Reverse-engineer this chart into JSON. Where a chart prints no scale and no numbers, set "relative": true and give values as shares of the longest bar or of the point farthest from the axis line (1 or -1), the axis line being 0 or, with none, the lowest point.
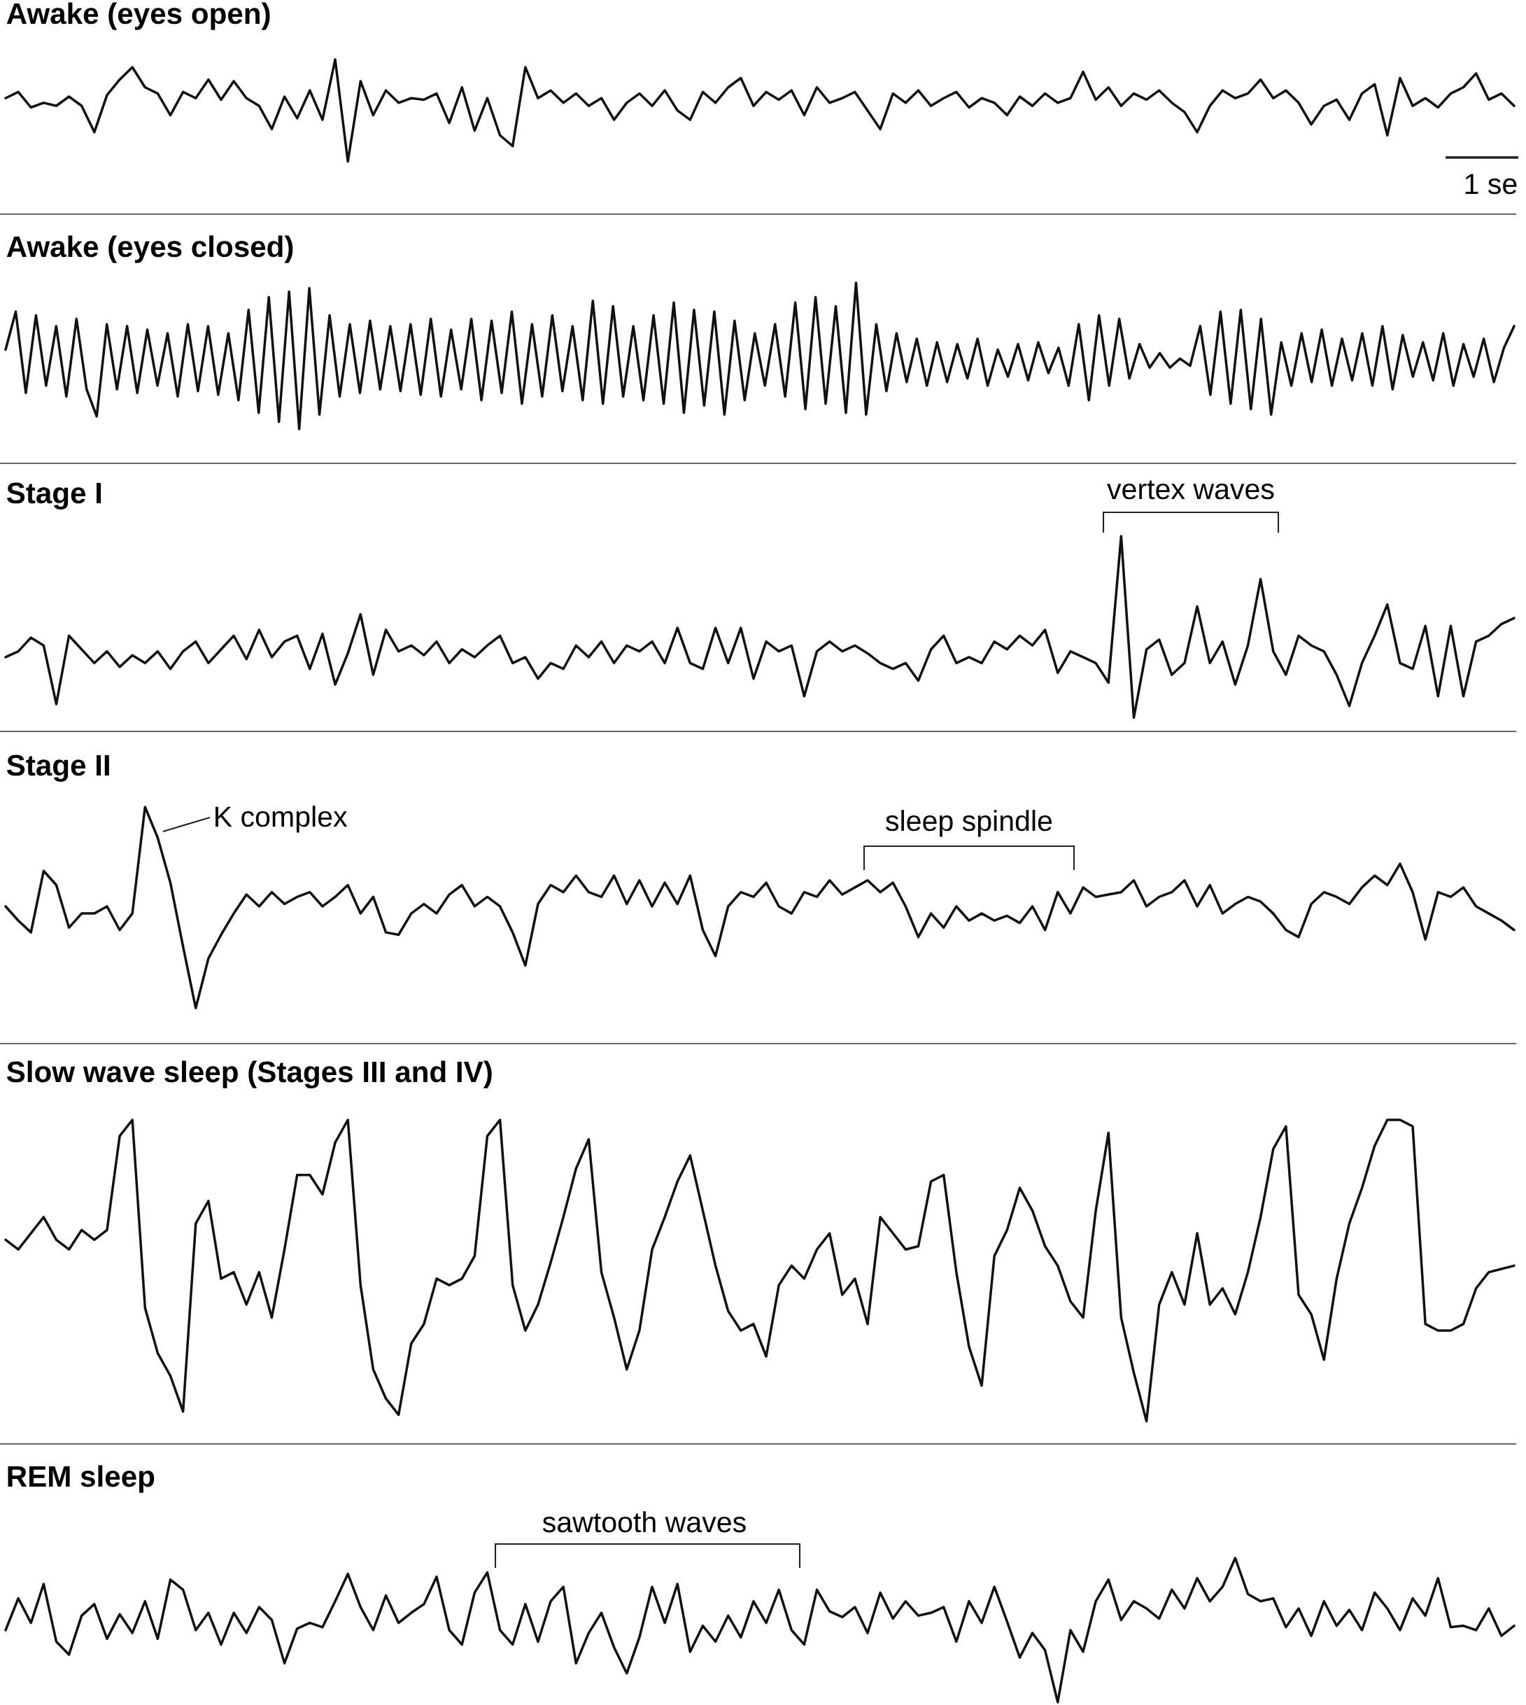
{
  "chart_data": [
    {
      "type": "line",
      "title": "Awake (eyes open)",
      "relative": true,
      "color": "#111111",
      "annotations": [
        "1 se"
      ],
      "categories": [
        null,
        null,
        null,
        null,
        null,
        null,
        null,
        null,
        null,
        null,
        null,
        null,
        null,
        null,
        null,
        null,
        null,
        null,
        null,
        null,
        null,
        null,
        null,
        null,
        null,
        null,
        null,
        null,
        null,
        null,
        null,
        null,
        null,
        null,
        null,
        null,
        null,
        null,
        null,
        null,
        null,
        null,
        null,
        null,
        null,
        null,
        null,
        null,
        null,
        null,
        null,
        null,
        null,
        null,
        null,
        null,
        null,
        null,
        null,
        null,
        null,
        null,
        null,
        null,
        null,
        null,
        null,
        null,
        null,
        null,
        null,
        null,
        null,
        null,
        null,
        null,
        null,
        null,
        null,
        null,
        null,
        null,
        null,
        null,
        null,
        null,
        null,
        null,
        null,
        null,
        null,
        null,
        null,
        null,
        null,
        null,
        null,
        null,
        null,
        null,
        null,
        null,
        null,
        null,
        null,
        null,
        null,
        null,
        null,
        null,
        null,
        null,
        null,
        null,
        null,
        null,
        null,
        null,
        null,
        null
      ],
      "values": [
        0.75,
        0.79,
        0.69,
        0.72,
        0.7,
        0.76,
        0.7,
        0.53,
        0.77,
        0.87,
        0.95,
        0.82,
        0.78,
        0.64,
        0.79,
        0.75,
        0.87,
        0.74,
        0.86,
        0.75,
        0.7,
        0.55,
        0.76,
        0.62,
        0.8,
        0.61,
        1.0,
        0.34,
        0.86,
        0.64,
        0.8,
        0.72,
        0.75,
        0.74,
        0.78,
        0.59,
        0.82,
        0.54,
        0.75,
        0.51,
        0.44,
        0.95,
        0.75,
        0.8,
        0.72,
        0.78,
        0.7,
        0.75,
        0.61,
        0.72,
        0.78,
        0.7,
        0.8,
        0.67,
        0.61,
        0.79,
        0.72,
        0.82,
        0.88,
        0.7,
        0.79,
        0.74,
        0.8,
        0.64,
        0.82,
        0.72,
        0.75,
        0.79,
        0.67,
        0.55,
        0.78,
        0.72,
        0.8,
        0.7,
        0.75,
        0.79,
        0.69,
        0.75,
        0.72,
        0.64,
        0.76,
        0.7,
        0.78,
        0.72,
        0.75,
        0.92,
        0.74,
        0.82,
        0.7,
        0.78,
        0.74,
        0.8,
        0.72,
        0.66,
        0.53,
        0.7,
        0.8,
        0.75,
        0.78,
        0.87,
        0.75,
        0.8,
        0.72,
        0.58,
        0.7,
        0.74,
        0.61,
        0.78,
        0.84,
        0.51,
        0.88,
        0.7,
        0.75,
        0.69,
        0.78,
        0.82,
        0.91,
        0.74,
        0.78,
        0.7
      ]
    },
    {
      "type": "line",
      "title": "Awake (eyes closed)",
      "relative": true,
      "color": "#111111",
      "categories": [
        null,
        null,
        null,
        null,
        null,
        null,
        null,
        null,
        null,
        null,
        null,
        null,
        null,
        null,
        null,
        null,
        null,
        null,
        null,
        null,
        null,
        null,
        null,
        null,
        null,
        null,
        null,
        null,
        null,
        null,
        null,
        null,
        null,
        null,
        null,
        null,
        null,
        null,
        null,
        null,
        null,
        null,
        null,
        null,
        null,
        null,
        null,
        null,
        null,
        null,
        null,
        null,
        null,
        null,
        null,
        null,
        null,
        null,
        null,
        null,
        null,
        null,
        null,
        null,
        null,
        null,
        null,
        null,
        null,
        null,
        null,
        null,
        null,
        null,
        null,
        null,
        null,
        null,
        null,
        null,
        null,
        null,
        null,
        null,
        null,
        null,
        null,
        null,
        null,
        null,
        null,
        null,
        null,
        null,
        null,
        null,
        null,
        null,
        null,
        null,
        null,
        null,
        null,
        null,
        null,
        null,
        null,
        null,
        null,
        null,
        null,
        null,
        null,
        null,
        null,
        null,
        null,
        null,
        null,
        null,
        null,
        null,
        null,
        null,
        null,
        null,
        null,
        null,
        null,
        null,
        null,
        null,
        null,
        null,
        null,
        null,
        null,
        null,
        null,
        null,
        null,
        null,
        null,
        null,
        null,
        null,
        null,
        null,
        null,
        null
      ],
      "values": [
        0.63,
        0.84,
        0.39,
        0.82,
        0.43,
        0.76,
        0.37,
        0.8,
        0.41,
        0.26,
        0.77,
        0.41,
        0.76,
        0.39,
        0.74,
        0.43,
        0.72,
        0.37,
        0.77,
        0.4,
        0.76,
        0.38,
        0.72,
        0.35,
        0.85,
        0.28,
        0.92,
        0.23,
        0.95,
        0.19,
        0.97,
        0.27,
        0.82,
        0.37,
        0.77,
        0.39,
        0.79,
        0.41,
        0.76,
        0.4,
        0.77,
        0.38,
        0.8,
        0.37,
        0.74,
        0.41,
        0.8,
        0.35,
        0.79,
        0.39,
        0.84,
        0.33,
        0.77,
        0.37,
        0.82,
        0.4,
        0.76,
        0.35,
        0.9,
        0.33,
        0.87,
        0.37,
        0.76,
        0.35,
        0.82,
        0.33,
        0.89,
        0.28,
        0.85,
        0.32,
        0.84,
        0.27,
        0.79,
        0.35,
        0.72,
        0.43,
        0.77,
        0.37,
        0.89,
        0.3,
        0.92,
        0.33,
        0.87,
        0.28,
        1.0,
        0.27,
        0.77,
        0.4,
        0.72,
        0.45,
        0.69,
        0.43,
        0.67,
        0.45,
        0.66,
        0.47,
        0.69,
        0.43,
        0.63,
        0.48,
        0.66,
        0.46,
        0.67,
        0.5,
        0.64,
        0.43,
        0.77,
        0.35,
        0.82,
        0.43,
        0.8,
        0.47,
        0.66,
        0.53,
        0.61,
        0.53,
        0.58,
        0.54,
        0.76,
        0.38,
        0.84,
        0.33,
        0.85,
        0.3,
        0.8,
        0.27,
        0.67,
        0.43,
        0.72,
        0.45,
        0.74,
        0.43,
        0.69,
        0.46,
        0.72,
        0.43,
        0.76,
        0.41,
        0.71,
        0.48,
        0.67,
        0.46,
        0.72,
        0.43,
        0.66,
        0.48,
        0.69,
        0.45,
        0.64,
        0.76
      ]
    },
    {
      "type": "line",
      "title": "Stage I",
      "relative": true,
      "color": "#111111",
      "annotations": [
        "vertex waves"
      ],
      "categories": [
        null,
        null,
        null,
        null,
        null,
        null,
        null,
        null,
        null,
        null,
        null,
        null,
        null,
        null,
        null,
        null,
        null,
        null,
        null,
        null,
        null,
        null,
        null,
        null,
        null,
        null,
        null,
        null,
        null,
        null,
        null,
        null,
        null,
        null,
        null,
        null,
        null,
        null,
        null,
        null,
        null,
        null,
        null,
        null,
        null,
        null,
        null,
        null,
        null,
        null,
        null,
        null,
        null,
        null,
        null,
        null,
        null,
        null,
        null,
        null,
        null,
        null,
        null,
        null,
        null,
        null,
        null,
        null,
        null,
        null,
        null,
        null,
        null,
        null,
        null,
        null,
        null,
        null,
        null,
        null,
        null,
        null,
        null,
        null,
        null,
        null,
        null,
        null,
        null,
        null,
        null,
        null,
        null,
        null,
        null,
        null,
        null,
        null,
        null,
        null,
        null,
        null,
        null,
        null,
        null,
        null,
        null,
        null,
        null,
        null,
        null,
        null,
        null,
        null,
        null,
        null,
        null,
        null,
        null,
        null
      ],
      "values": [
        0.38,
        0.41,
        0.48,
        0.44,
        0.14,
        0.49,
        0.42,
        0.35,
        0.41,
        0.33,
        0.39,
        0.35,
        0.41,
        0.32,
        0.41,
        0.46,
        0.35,
        0.42,
        0.49,
        0.37,
        0.52,
        0.38,
        0.46,
        0.49,
        0.32,
        0.5,
        0.24,
        0.4,
        0.6,
        0.29,
        0.52,
        0.41,
        0.44,
        0.39,
        0.46,
        0.35,
        0.42,
        0.38,
        0.44,
        0.49,
        0.35,
        0.38,
        0.27,
        0.35,
        0.32,
        0.44,
        0.38,
        0.46,
        0.35,
        0.44,
        0.41,
        0.46,
        0.35,
        0.53,
        0.35,
        0.32,
        0.53,
        0.35,
        0.53,
        0.27,
        0.46,
        0.41,
        0.44,
        0.18,
        0.41,
        0.46,
        0.41,
        0.44,
        0.4,
        0.35,
        0.32,
        0.35,
        0.26,
        0.42,
        0.49,
        0.35,
        0.38,
        0.35,
        0.46,
        0.42,
        0.49,
        0.44,
        0.52,
        0.3,
        0.41,
        0.38,
        0.35,
        0.25,
        1.0,
        0.07,
        0.42,
        0.47,
        0.29,
        0.35,
        0.64,
        0.35,
        0.46,
        0.24,
        0.44,
        0.78,
        0.41,
        0.29,
        0.49,
        0.44,
        0.41,
        0.29,
        0.13,
        0.35,
        0.49,
        0.65,
        0.35,
        0.32,
        0.54,
        0.18,
        0.54,
        0.18,
        0.46,
        0.49,
        0.55,
        0.58
      ]
    },
    {
      "type": "line",
      "title": "Stage II",
      "relative": true,
      "color": "#111111",
      "annotations": [
        "K complex",
        "sleep spindle"
      ],
      "categories": [
        null,
        null,
        null,
        null,
        null,
        null,
        null,
        null,
        null,
        null,
        null,
        null,
        null,
        null,
        null,
        null,
        null,
        null,
        null,
        null,
        null,
        null,
        null,
        null,
        null,
        null,
        null,
        null,
        null,
        null,
        null,
        null,
        null,
        null,
        null,
        null,
        null,
        null,
        null,
        null,
        null,
        null,
        null,
        null,
        null,
        null,
        null,
        null,
        null,
        null,
        null,
        null,
        null,
        null,
        null,
        null,
        null,
        null,
        null,
        null,
        null,
        null,
        null,
        null,
        null,
        null,
        null,
        null,
        null,
        null,
        null,
        null,
        null,
        null,
        null,
        null,
        null,
        null,
        null,
        null,
        null,
        null,
        null,
        null,
        null,
        null,
        null,
        null,
        null,
        null,
        null,
        null,
        null,
        null,
        null,
        null,
        null,
        null,
        null,
        null,
        null,
        null,
        null,
        null,
        null,
        null,
        null,
        null,
        null,
        null,
        null,
        null,
        null,
        null,
        null,
        null,
        null,
        null,
        null,
        null
      ],
      "values": [
        0.58,
        0.52,
        0.47,
        0.73,
        0.67,
        0.49,
        0.55,
        0.55,
        0.58,
        0.48,
        0.55,
        1.0,
        0.87,
        0.68,
        0.41,
        0.15,
        0.36,
        0.46,
        0.55,
        0.63,
        0.58,
        0.64,
        0.59,
        0.62,
        0.64,
        0.58,
        0.62,
        0.67,
        0.55,
        0.62,
        0.47,
        0.46,
        0.55,
        0.59,
        0.55,
        0.63,
        0.67,
        0.58,
        0.62,
        0.58,
        0.47,
        0.33,
        0.59,
        0.67,
        0.64,
        0.71,
        0.64,
        0.62,
        0.71,
        0.59,
        0.69,
        0.58,
        0.68,
        0.59,
        0.71,
        0.48,
        0.37,
        0.58,
        0.64,
        0.62,
        0.68,
        0.58,
        0.55,
        0.64,
        0.62,
        0.69,
        0.63,
        0.66,
        0.69,
        0.64,
        0.68,
        0.58,
        0.45,
        0.55,
        0.49,
        0.58,
        0.52,
        0.55,
        0.52,
        0.54,
        0.51,
        0.58,
        0.48,
        0.64,
        0.55,
        0.66,
        0.62,
        0.63,
        0.64,
        0.69,
        0.58,
        0.62,
        0.64,
        0.69,
        0.58,
        0.67,
        0.55,
        0.59,
        0.62,
        0.6,
        0.55,
        0.48,
        0.45,
        0.59,
        0.64,
        0.62,
        0.59,
        0.66,
        0.71,
        0.67,
        0.76,
        0.64,
        0.44,
        0.64,
        0.62,
        0.66,
        0.58,
        0.55,
        0.52,
        0.48
      ]
    },
    {
      "type": "line",
      "title": "Slow wave sleep (Stages III and IV)",
      "relative": true,
      "color": "#111111",
      "categories": [
        null,
        null,
        null,
        null,
        null,
        null,
        null,
        null,
        null,
        null,
        null,
        null,
        null,
        null,
        null,
        null,
        null,
        null,
        null,
        null,
        null,
        null,
        null,
        null,
        null,
        null,
        null,
        null,
        null,
        null,
        null,
        null,
        null,
        null,
        null,
        null,
        null,
        null,
        null,
        null,
        null,
        null,
        null,
        null,
        null,
        null,
        null,
        null,
        null,
        null,
        null,
        null,
        null,
        null,
        null,
        null,
        null,
        null,
        null,
        null,
        null,
        null,
        null,
        null,
        null,
        null,
        null,
        null,
        null,
        null,
        null,
        null,
        null,
        null,
        null,
        null,
        null,
        null,
        null,
        null,
        null,
        null,
        null,
        null,
        null,
        null,
        null,
        null,
        null,
        null,
        null,
        null,
        null,
        null,
        null,
        null,
        null,
        null,
        null,
        null,
        null,
        null,
        null,
        null,
        null,
        null,
        null,
        null,
        null,
        null,
        null,
        null,
        null,
        null,
        null,
        null,
        null,
        null,
        null,
        null
      ],
      "values": [
        0.63,
        0.6,
        0.65,
        0.7,
        0.63,
        0.6,
        0.66,
        0.63,
        0.66,
        0.95,
        1.0,
        0.42,
        0.28,
        0.21,
        0.1,
        0.68,
        0.75,
        0.51,
        0.53,
        0.43,
        0.53,
        0.39,
        0.6,
        0.83,
        0.83,
        0.77,
        0.93,
        1.0,
        0.49,
        0.23,
        0.14,
        0.09,
        0.31,
        0.37,
        0.51,
        0.49,
        0.51,
        0.58,
        0.95,
        1.0,
        0.49,
        0.35,
        0.43,
        0.56,
        0.7,
        0.85,
        0.94,
        0.53,
        0.39,
        0.23,
        0.35,
        0.6,
        0.7,
        0.81,
        0.89,
        0.72,
        0.55,
        0.41,
        0.35,
        0.37,
        0.27,
        0.49,
        0.55,
        0.51,
        0.6,
        0.65,
        0.46,
        0.51,
        0.37,
        0.7,
        0.65,
        0.6,
        0.61,
        0.81,
        0.83,
        0.53,
        0.3,
        0.18,
        0.58,
        0.66,
        0.79,
        0.72,
        0.61,
        0.55,
        0.44,
        0.39,
        0.72,
        0.96,
        0.39,
        0.22,
        0.07,
        0.43,
        0.53,
        0.43,
        0.65,
        0.43,
        0.48,
        0.4,
        0.53,
        0.7,
        0.91,
        0.98,
        0.46,
        0.4,
        0.26,
        0.51,
        0.68,
        0.79,
        0.92,
        1.0,
        1.0,
        0.98,
        0.37,
        0.35,
        0.35,
        0.37,
        0.48,
        0.53,
        0.54,
        0.55
      ]
    },
    {
      "type": "line",
      "title": "REM sleep",
      "relative": true,
      "color": "#111111",
      "annotations": [
        "sawtooth waves"
      ],
      "categories": [
        null,
        null,
        null,
        null,
        null,
        null,
        null,
        null,
        null,
        null,
        null,
        null,
        null,
        null,
        null,
        null,
        null,
        null,
        null,
        null,
        null,
        null,
        null,
        null,
        null,
        null,
        null,
        null,
        null,
        null,
        null,
        null,
        null,
        null,
        null,
        null,
        null,
        null,
        null,
        null,
        null,
        null,
        null,
        null,
        null,
        null,
        null,
        null,
        null,
        null,
        null,
        null,
        null,
        null,
        null,
        null,
        null,
        null,
        null,
        null,
        null,
        null,
        null,
        null,
        null,
        null,
        null,
        null,
        null,
        null,
        null,
        null,
        null,
        null,
        null,
        null,
        null,
        null,
        null,
        null,
        null,
        null,
        null,
        null,
        null,
        null,
        null,
        null,
        null,
        null,
        null,
        null,
        null,
        null,
        null,
        null,
        null,
        null,
        null,
        null,
        null,
        null,
        null,
        null,
        null,
        null,
        null,
        null,
        null,
        null,
        null,
        null,
        null,
        null,
        null,
        null,
        null,
        null,
        null,
        null
      ],
      "values": [
        0.5,
        0.72,
        0.55,
        0.82,
        0.42,
        0.33,
        0.6,
        0.68,
        0.44,
        0.61,
        0.48,
        0.7,
        0.44,
        0.85,
        0.78,
        0.5,
        0.62,
        0.4,
        0.62,
        0.48,
        0.66,
        0.57,
        0.27,
        0.51,
        0.55,
        0.52,
        0.7,
        0.89,
        0.66,
        0.5,
        0.74,
        0.55,
        0.62,
        0.68,
        0.87,
        0.5,
        0.4,
        0.76,
        0.9,
        0.5,
        0.4,
        0.68,
        0.42,
        0.7,
        0.8,
        0.27,
        0.48,
        0.62,
        0.38,
        0.2,
        0.45,
        0.8,
        0.55,
        0.82,
        0.35,
        0.53,
        0.42,
        0.6,
        0.45,
        0.7,
        0.55,
        0.78,
        0.5,
        0.4,
        0.78,
        0.63,
        0.59,
        0.66,
        0.48,
        0.76,
        0.58,
        0.7,
        0.6,
        0.62,
        0.66,
        0.42,
        0.7,
        0.55,
        0.8,
        0.56,
        0.31,
        0.48,
        0.36,
        0.0,
        0.5,
        0.35,
        0.7,
        0.85,
        0.57,
        0.7,
        0.65,
        0.58,
        0.78,
        0.65,
        0.86,
        0.7,
        0.8,
        1.0,
        0.75,
        0.7,
        0.72,
        0.52,
        0.65,
        0.46,
        0.7,
        0.53,
        0.64,
        0.5,
        0.76,
        0.65,
        0.5,
        0.72,
        0.6,
        0.86,
        0.52,
        0.53,
        0.5,
        0.65,
        0.46,
        0.53
      ]
    }
  ]
}
